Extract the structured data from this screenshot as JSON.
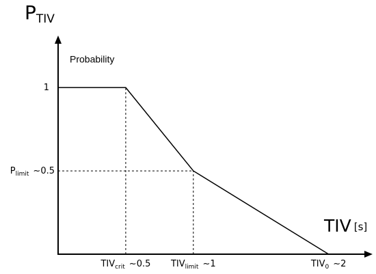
{
  "chart_data": {
    "type": "line",
    "y_label": "P",
    "y_label_sub": "TIV",
    "x_label": "TIV",
    "x_unit": "[s]",
    "annotation": "Probability",
    "x": [
      0,
      0.5,
      1,
      2
    ],
    "values": [
      1,
      1,
      0.5,
      0
    ],
    "color": "#000000",
    "xlim": [
      0,
      2.3
    ],
    "ylim": [
      0,
      1.3
    ],
    "xticks": [
      {
        "value": 0.5,
        "label": "TIV",
        "label_sub": "crit",
        "label_suffix": "~0.5"
      },
      {
        "value": 1,
        "label": "TIV",
        "label_sub": "limit",
        "label_suffix": "~1"
      },
      {
        "value": 2,
        "label": "TIV",
        "label_sub": "0",
        "label_suffix": "~2"
      }
    ],
    "yticks": [
      {
        "value": 0.5,
        "label": "P",
        "label_sub": "limit",
        "label_suffix": "~0.5"
      },
      1
    ]
  }
}
